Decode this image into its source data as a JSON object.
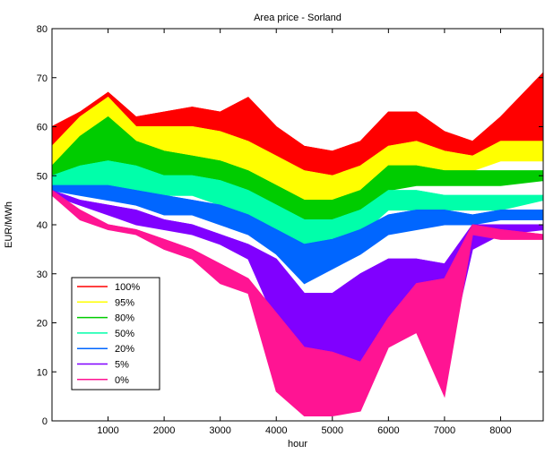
{
  "chart_data": {
    "type": "area",
    "title": "Area price - Sorland",
    "xlabel": "hour",
    "ylabel": "EUR/MWh",
    "xlim": [
      0,
      8760
    ],
    "ylim": [
      0,
      80
    ],
    "xticks": [
      1000,
      2000,
      3000,
      4000,
      5000,
      6000,
      7000,
      8000
    ],
    "yticks": [
      0,
      10,
      20,
      30,
      40,
      50,
      60,
      70,
      80
    ],
    "grid": false,
    "legend_position": "lower-left",
    "x": [
      0,
      500,
      1000,
      1500,
      2000,
      2500,
      3000,
      3500,
      4000,
      4500,
      5000,
      5500,
      6000,
      6500,
      7000,
      7500,
      8000,
      8760
    ],
    "series": [
      {
        "name": "100%",
        "color": "#ff0000",
        "upper": [
          60,
          63,
          67,
          62,
          63,
          64,
          63,
          66,
          60,
          56,
          55,
          57,
          63,
          63,
          59,
          57,
          62,
          71
        ],
        "lower": [
          53,
          56,
          58,
          56,
          57,
          58,
          56,
          55,
          53,
          48,
          48,
          50,
          55,
          55,
          52,
          51,
          55,
          57
        ]
      },
      {
        "name": "95%",
        "color": "#ffff00",
        "upper": [
          56,
          62,
          66,
          60,
          60,
          60,
          59,
          57,
          54,
          51,
          50,
          52,
          56,
          57,
          55,
          54,
          57,
          57
        ],
        "lower": [
          52,
          54,
          55,
          54,
          54,
          54,
          52,
          50,
          47,
          44,
          44,
          46,
          51,
          52,
          51,
          51,
          53,
          53
        ]
      },
      {
        "name": "80%",
        "color": "#00cc00",
        "upper": [
          52,
          58,
          62,
          57,
          55,
          54,
          53,
          51,
          48,
          45,
          45,
          47,
          52,
          52,
          51,
          51,
          51,
          51
        ],
        "lower": [
          49,
          50,
          51,
          50,
          50,
          50,
          48,
          46,
          43,
          40,
          40,
          42,
          47,
          48,
          48,
          48,
          48,
          49
        ]
      },
      {
        "name": "50%",
        "color": "#00ffaa",
        "upper": [
          50,
          52,
          53,
          52,
          50,
          50,
          49,
          47,
          44,
          41,
          41,
          43,
          47,
          47,
          46,
          46,
          46,
          46
        ],
        "lower": [
          48,
          48,
          48,
          47,
          46,
          46,
          44,
          42,
          39,
          36,
          36,
          38,
          43,
          43,
          43,
          43,
          43,
          45
        ]
      },
      {
        "name": "20%",
        "color": "#0066ff",
        "upper": [
          48,
          48,
          48,
          47,
          46,
          45,
          44,
          42,
          39,
          36,
          37,
          39,
          42,
          43,
          43,
          42,
          43,
          43
        ],
        "lower": [
          47,
          46,
          45,
          44,
          42,
          42,
          40,
          38,
          34,
          28,
          31,
          34,
          38,
          39,
          40,
          40,
          41,
          41
        ]
      },
      {
        "name": "5%",
        "color": "#8000ff",
        "upper": [
          47,
          45,
          44,
          43,
          41,
          40,
          38,
          36,
          33,
          26,
          26,
          30,
          33,
          33,
          32,
          40,
          40,
          40
        ],
        "lower": [
          46,
          44,
          42,
          40,
          39,
          38,
          36,
          33,
          20,
          2,
          3,
          12,
          20,
          25,
          10,
          35,
          38,
          39
        ]
      },
      {
        "name": "0%",
        "color": "#ff1493",
        "upper": [
          47,
          43,
          40,
          39,
          37,
          35,
          32,
          29,
          22,
          15,
          14,
          12,
          21,
          28,
          29,
          40,
          39,
          38
        ],
        "lower": [
          46,
          41,
          39,
          38,
          35,
          33,
          28,
          26,
          6,
          1,
          1,
          2,
          15,
          18,
          5,
          38,
          37,
          37
        ]
      }
    ]
  }
}
